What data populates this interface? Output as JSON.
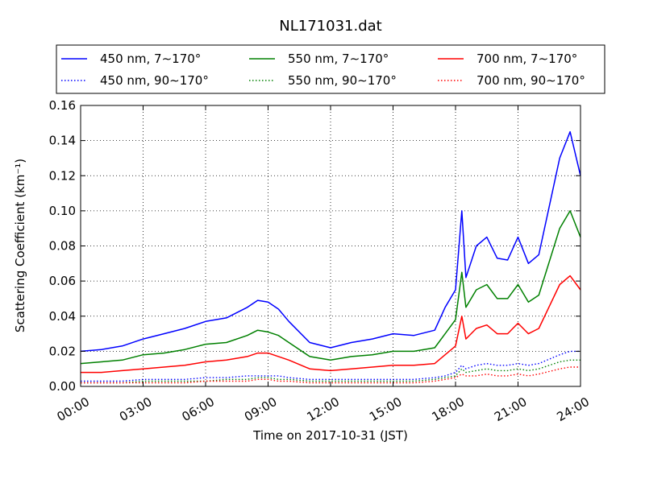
{
  "chart_data": {
    "type": "line",
    "title": "NL171031.dat",
    "xlabel": "Time on 2017-10-31 (JST)",
    "ylabel": "Scattering Coefficient (km⁻¹)",
    "xlim": [
      0,
      24
    ],
    "ylim": [
      0,
      0.16
    ],
    "x_tick_labels": [
      "00:00",
      "03:00",
      "06:00",
      "09:00",
      "12:00",
      "15:00",
      "18:00",
      "21:00",
      "24:00"
    ],
    "y_tick_labels": [
      "0.00",
      "0.02",
      "0.04",
      "0.06",
      "0.08",
      "0.10",
      "0.12",
      "0.14",
      "0.16"
    ],
    "grid": true,
    "legend_position": "top",
    "x": [
      0,
      1,
      2,
      3,
      4,
      5,
      6,
      7,
      8,
      8.5,
      9,
      9.5,
      10,
      11,
      12,
      13,
      14,
      15,
      16,
      17,
      17.5,
      18,
      18.3,
      18.5,
      19,
      19.5,
      20,
      20.5,
      21,
      21.5,
      22,
      23,
      23.5,
      24
    ],
    "series": [
      {
        "name": "450 nm, 7∼170°",
        "color": "#0000ff",
        "style": "solid",
        "values": [
          0.02,
          0.021,
          0.023,
          0.027,
          0.03,
          0.033,
          0.037,
          0.039,
          0.045,
          0.049,
          0.048,
          0.044,
          0.037,
          0.025,
          0.022,
          0.025,
          0.027,
          0.03,
          0.029,
          0.032,
          0.045,
          0.055,
          0.1,
          0.062,
          0.08,
          0.085,
          0.073,
          0.072,
          0.085,
          0.07,
          0.075,
          0.13,
          0.145,
          0.12
        ]
      },
      {
        "name": "450 nm, 90∼170°",
        "color": "#0000ff",
        "style": "dotted",
        "values": [
          0.003,
          0.003,
          0.003,
          0.004,
          0.004,
          0.004,
          0.005,
          0.005,
          0.006,
          0.006,
          0.006,
          0.006,
          0.005,
          0.004,
          0.004,
          0.004,
          0.004,
          0.004,
          0.004,
          0.005,
          0.006,
          0.008,
          0.012,
          0.01,
          0.012,
          0.013,
          0.012,
          0.012,
          0.013,
          0.012,
          0.013,
          0.018,
          0.02,
          0.02
        ]
      },
      {
        "name": "550 nm, 7∼170°",
        "color": "#008000",
        "style": "solid",
        "values": [
          0.013,
          0.014,
          0.015,
          0.018,
          0.019,
          0.021,
          0.024,
          0.025,
          0.029,
          0.032,
          0.031,
          0.029,
          0.025,
          0.017,
          0.015,
          0.017,
          0.018,
          0.02,
          0.02,
          0.022,
          0.03,
          0.038,
          0.065,
          0.045,
          0.055,
          0.058,
          0.05,
          0.05,
          0.058,
          0.048,
          0.052,
          0.09,
          0.1,
          0.085
        ]
      },
      {
        "name": "550 nm, 90∼170°",
        "color": "#008000",
        "style": "dotted",
        "values": [
          0.002,
          0.002,
          0.002,
          0.003,
          0.003,
          0.003,
          0.003,
          0.004,
          0.004,
          0.005,
          0.005,
          0.004,
          0.004,
          0.003,
          0.003,
          0.003,
          0.003,
          0.003,
          0.003,
          0.004,
          0.005,
          0.006,
          0.01,
          0.008,
          0.009,
          0.01,
          0.009,
          0.009,
          0.01,
          0.009,
          0.01,
          0.014,
          0.015,
          0.015
        ]
      },
      {
        "name": "700 nm, 7∼170°",
        "color": "#ff0000",
        "style": "solid",
        "values": [
          0.008,
          0.008,
          0.009,
          0.01,
          0.011,
          0.012,
          0.014,
          0.015,
          0.017,
          0.019,
          0.019,
          0.017,
          0.015,
          0.01,
          0.009,
          0.01,
          0.011,
          0.012,
          0.012,
          0.013,
          0.018,
          0.023,
          0.04,
          0.027,
          0.033,
          0.035,
          0.03,
          0.03,
          0.036,
          0.03,
          0.033,
          0.058,
          0.063,
          0.055
        ]
      },
      {
        "name": "700 nm, 90∼170°",
        "color": "#ff0000",
        "style": "dotted",
        "values": [
          0.002,
          0.002,
          0.002,
          0.002,
          0.002,
          0.002,
          0.003,
          0.003,
          0.003,
          0.004,
          0.004,
          0.003,
          0.003,
          0.002,
          0.002,
          0.002,
          0.002,
          0.002,
          0.002,
          0.003,
          0.004,
          0.005,
          0.007,
          0.006,
          0.006,
          0.007,
          0.006,
          0.006,
          0.007,
          0.006,
          0.007,
          0.01,
          0.011,
          0.011
        ]
      }
    ]
  }
}
